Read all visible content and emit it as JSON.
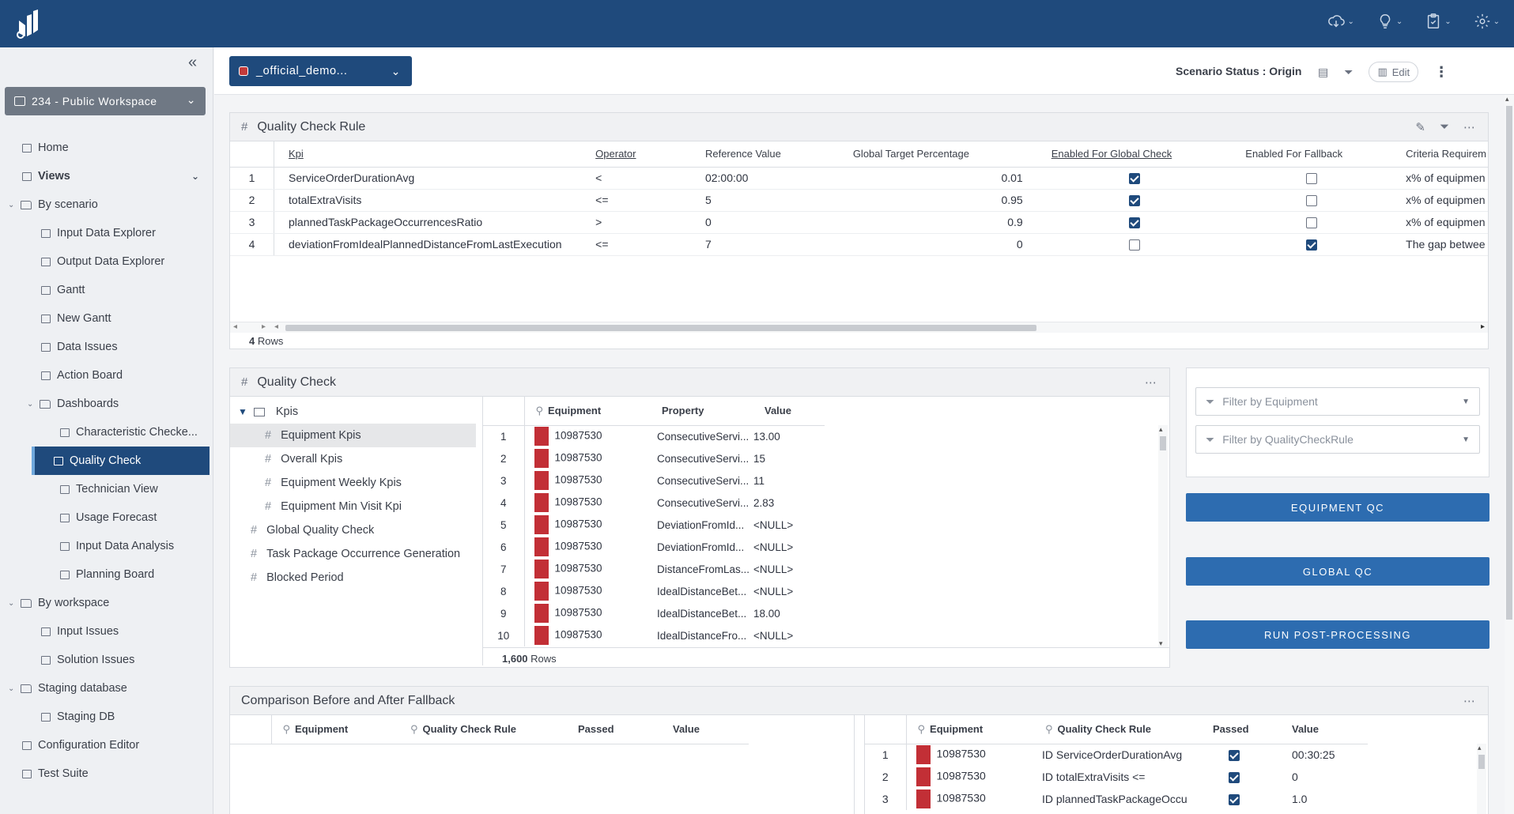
{
  "topbar": {
    "icons": [
      "cloud-download-icon",
      "lightbulb-icon",
      "clipboard-check-icon",
      "settings-icon"
    ]
  },
  "sidebar": {
    "workspace": "234 - Public Workspace",
    "items": [
      {
        "label": "Home",
        "level": 0,
        "type": "page"
      },
      {
        "label": "Views",
        "level": 0,
        "type": "page",
        "bold": true
      },
      {
        "label": "By scenario",
        "level": 0,
        "type": "folder"
      },
      {
        "label": "Input Data Explorer",
        "level": 1,
        "type": "page"
      },
      {
        "label": "Output Data Explorer",
        "level": 1,
        "type": "page"
      },
      {
        "label": "Gantt",
        "level": 1,
        "type": "page"
      },
      {
        "label": "New Gantt",
        "level": 1,
        "type": "page"
      },
      {
        "label": "Data Issues",
        "level": 1,
        "type": "page"
      },
      {
        "label": "Action Board",
        "level": 1,
        "type": "page"
      },
      {
        "label": "Dashboards",
        "level": 1,
        "type": "folder"
      },
      {
        "label": "Characteristic Checke...",
        "level": 2,
        "type": "page"
      },
      {
        "label": "Quality Check",
        "level": 2,
        "type": "page",
        "active": true
      },
      {
        "label": "Technician View",
        "level": 2,
        "type": "page"
      },
      {
        "label": "Usage Forecast",
        "level": 2,
        "type": "page"
      },
      {
        "label": "Input Data Analysis",
        "level": 2,
        "type": "page"
      },
      {
        "label": "Planning Board",
        "level": 2,
        "type": "page"
      },
      {
        "label": "By workspace",
        "level": 0,
        "type": "folder"
      },
      {
        "label": "Input Issues",
        "level": 1,
        "type": "page"
      },
      {
        "label": "Solution Issues",
        "level": 1,
        "type": "page"
      },
      {
        "label": "Staging database",
        "level": 0,
        "type": "folder"
      },
      {
        "label": "Staging DB",
        "level": 1,
        "type": "page"
      },
      {
        "label": "Configuration Editor",
        "level": 0,
        "type": "page"
      },
      {
        "label": "Test Suite",
        "level": 0,
        "type": "page"
      }
    ]
  },
  "subbar": {
    "scenario": "_official_demo...",
    "status": "Scenario Status : Origin",
    "edit_label": "Edit"
  },
  "quality_check_rule": {
    "title": "Quality Check Rule",
    "columns": [
      "Kpi",
      "Operator",
      "Reference Value",
      "Global Target Percentage",
      "Enabled For Global Check",
      "Enabled For Fallback",
      "Criteria Requirem"
    ],
    "rows": [
      {
        "num": "1",
        "kpi": "ServiceOrderDurationAvg",
        "op": "<",
        "ref": "02:00:00",
        "pct": "0.01",
        "global": true,
        "fallback": false,
        "criteria": "x% of equipmen"
      },
      {
        "num": "2",
        "kpi": "totalExtraVisits",
        "op": "<=",
        "ref": "5",
        "pct": "0.95",
        "global": true,
        "fallback": false,
        "criteria": "x% of equipmen"
      },
      {
        "num": "3",
        "kpi": "plannedTaskPackageOccurrencesRatio",
        "op": ">",
        "ref": "0",
        "pct": "0.9",
        "global": true,
        "fallback": false,
        "criteria": "x% of equipmen"
      },
      {
        "num": "4",
        "kpi": "deviationFromIdealPlannedDistanceFromLastExecution",
        "op": "<=",
        "ref": "7",
        "pct": "0",
        "global": false,
        "fallback": true,
        "criteria": "The gap betwee"
      }
    ],
    "row_count": "4",
    "row_suffix": "Rows"
  },
  "quality_check": {
    "title": "Quality Check",
    "tree": [
      {
        "label": "Kpis",
        "level": 0,
        "type": "folder",
        "expanded": true
      },
      {
        "label": "Equipment Kpis",
        "level": 1,
        "type": "grid",
        "selected": true
      },
      {
        "label": "Overall Kpis",
        "level": 1,
        "type": "grid"
      },
      {
        "label": "Equipment Weekly Kpis",
        "level": 1,
        "type": "grid"
      },
      {
        "label": "Equipment Min Visit Kpi",
        "level": 1,
        "type": "grid"
      },
      {
        "label": "Global Quality Check",
        "level": 0,
        "type": "grid"
      },
      {
        "label": "Task Package Occurrence Generation",
        "level": 0,
        "type": "grid"
      },
      {
        "label": "Blocked Period",
        "level": 0,
        "type": "grid"
      }
    ],
    "columns": [
      "Equipment",
      "Property",
      "Value"
    ],
    "rows": [
      {
        "num": "1",
        "equipment": "10987530",
        "property": "ConsecutiveServi...",
        "value": "13.00"
      },
      {
        "num": "2",
        "equipment": "10987530",
        "property": "ConsecutiveServi...",
        "value": "15"
      },
      {
        "num": "3",
        "equipment": "10987530",
        "property": "ConsecutiveServi...",
        "value": "11"
      },
      {
        "num": "4",
        "equipment": "10987530",
        "property": "ConsecutiveServi...",
        "value": "2.83"
      },
      {
        "num": "5",
        "equipment": "10987530",
        "property": "DeviationFromId...",
        "value": "<NULL>"
      },
      {
        "num": "6",
        "equipment": "10987530",
        "property": "DeviationFromId...",
        "value": "<NULL>"
      },
      {
        "num": "7",
        "equipment": "10987530",
        "property": "DistanceFromLas...",
        "value": "<NULL>"
      },
      {
        "num": "8",
        "equipment": "10987530",
        "property": "IdealDistanceBet...",
        "value": "<NULL>"
      },
      {
        "num": "9",
        "equipment": "10987530",
        "property": "IdealDistanceBet...",
        "value": "18.00"
      },
      {
        "num": "10",
        "equipment": "10987530",
        "property": "IdealDistanceFro...",
        "value": "<NULL>"
      }
    ],
    "row_count": "1,600",
    "row_suffix": "Rows"
  },
  "filters": {
    "equipment_placeholder": "Filter by Equipment",
    "rule_placeholder": "Filter by QualityCheckRule"
  },
  "actions": {
    "equipment_qc": "EQUIPMENT QC",
    "global_qc": "GLOBAL QC",
    "post_processing": "RUN POST-PROCESSING"
  },
  "comparison": {
    "title": "Comparison Before and After Fallback",
    "columns": [
      "Equipment",
      "Quality Check Rule",
      "Passed",
      "Value"
    ],
    "right_rows": [
      {
        "num": "1",
        "equipment": "10987530",
        "rule": "ID ServiceOrderDurationAvg",
        "passed": true,
        "value": "00:30:25"
      },
      {
        "num": "2",
        "equipment": "10987530",
        "rule": "ID totalExtraVisits <=",
        "passed": true,
        "value": "0"
      },
      {
        "num": "3",
        "equipment": "10987530",
        "rule": "ID plannedTaskPackageOccu",
        "passed": true,
        "value": "1.0"
      }
    ]
  }
}
